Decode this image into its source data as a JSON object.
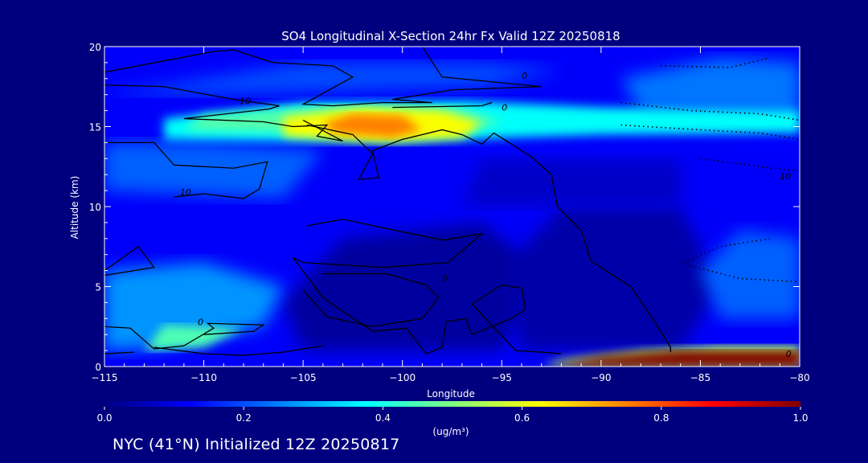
{
  "chart_data": {
    "type": "heatmap",
    "title": "SO4 Longitudinal X-Section 24hr  Fx Valid 12Z 20250818",
    "xlabel": "Longitude",
    "ylabel": "Altitude (km)",
    "xlim": [
      -115,
      -80
    ],
    "ylim": [
      0,
      20
    ],
    "x_ticks": [
      -115,
      -110,
      -105,
      -100,
      -95,
      -90,
      -85,
      -80
    ],
    "x_tick_labels": [
      "−115",
      "−110",
      "−105",
      "−100",
      "−95",
      "−90",
      "−85",
      "−80"
    ],
    "y_ticks": [
      0,
      5,
      10,
      15,
      20
    ],
    "y_tick_labels": [
      "0",
      "5",
      "10",
      "15",
      "20"
    ],
    "colorbar": {
      "label": "(ug/m³)",
      "range": [
        0.0,
        1.0
      ],
      "tick_labels": [
        "0.0",
        "0.2",
        "0.4",
        "0.6",
        "0.8",
        "1.0"
      ],
      "colors": [
        "#00007f",
        "#0000ff",
        "#0080ff",
        "#00ffff",
        "#80ff80",
        "#ffff00",
        "#ff8000",
        "#ff0000",
        "#800000"
      ]
    },
    "background_field": 0.12,
    "features": [
      {
        "label": "upper-tropospheric SO4 layer",
        "lon": [
          -110,
          -83
        ],
        "alt": [
          14,
          16.5
        ],
        "peak": 0.55
      },
      {
        "label": "upper-level maximum",
        "lon": -101.5,
        "alt": 15,
        "peak": 0.72
      },
      {
        "label": "near-surface plume",
        "lon": [
          -92,
          -80
        ],
        "alt": [
          0,
          1
        ],
        "peak": 1.0
      },
      {
        "label": "western low-level area",
        "lon": [
          -115,
          -106
        ],
        "alt": [
          1,
          6
        ],
        "peak": 0.3
      },
      {
        "label": "eastern mid-level area",
        "lon": [
          -84,
          -80
        ],
        "alt": [
          3,
          8
        ],
        "peak": 0.25
      }
    ],
    "contour_labels": [
      {
        "text": "0",
        "lon": -94,
        "alt": 18.2
      },
      {
        "text": "0",
        "lon": -95,
        "alt": 16.2
      },
      {
        "text": "10",
        "lon": -108.2,
        "alt": 16.6
      },
      {
        "text": "10",
        "lon": -111.2,
        "alt": 10.9
      },
      {
        "text": "0",
        "lon": -98,
        "alt": 5.5
      },
      {
        "text": "0",
        "lon": -110.3,
        "alt": 2.8
      },
      {
        "text": "10",
        "lon": -81,
        "alt": 11.9
      },
      {
        "text": "0",
        "lon": -80.7,
        "alt": 0.8
      }
    ]
  },
  "footer": "NYC (41°N) Initialized 12Z 20250817"
}
